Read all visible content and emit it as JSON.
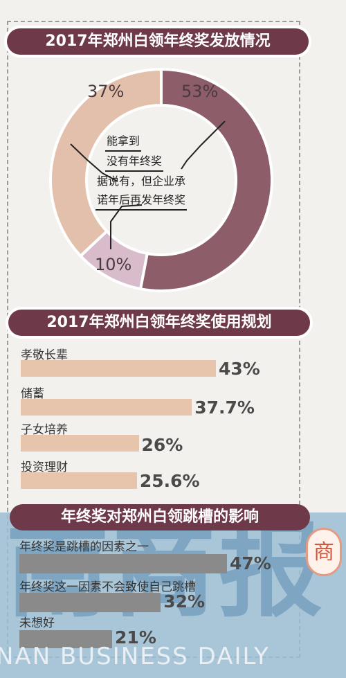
{
  "colors": {
    "banner": "#6e3a4a",
    "pie_large": "#8d5d6a",
    "pie_medium": "#e2c0ab",
    "pie_small": "#d9bccb",
    "bar": "#e7c4ac",
    "watermark": "#9bbdd3"
  },
  "chart_data": [
    {
      "type": "pie",
      "title": "2017年郑州白领年终奖发放情况",
      "categories": [
        "能拿到",
        "没有年终奖",
        "据说有，但企业承诺年后再发年终奖"
      ],
      "values": [
        53,
        37,
        10
      ],
      "value_labels": [
        "53%",
        "37%",
        "10%"
      ],
      "center_labels": [
        "能拿到",
        "没有年终奖",
        "据说有，但企业承",
        "诺年后再发年终奖"
      ]
    },
    {
      "type": "bar",
      "title": "2017年郑州白领年终奖使用规划",
      "categories": [
        "孝敬长辈",
        "储蓄",
        "子女培养",
        "投资理财"
      ],
      "values": [
        43,
        37.7,
        26,
        25.6
      ],
      "value_labels": [
        "43%",
        "37.7%",
        "26%",
        "25.6%"
      ],
      "xlim": [
        0,
        43
      ]
    },
    {
      "type": "bar",
      "title": "年终奖对郑州白领跳槽的影响",
      "categories": [
        "年终奖是跳槽的因素之一",
        "年终奖这一因素不会致使自己跳槽",
        "未想好"
      ],
      "values": [
        47,
        32,
        21
      ],
      "value_labels": [
        "47%",
        "32%",
        "21%"
      ],
      "xlim": [
        0,
        47
      ]
    }
  ],
  "watermark": {
    "title": "南商报",
    "english": "NAN BUSINESS DAILY",
    "seal": "商"
  }
}
